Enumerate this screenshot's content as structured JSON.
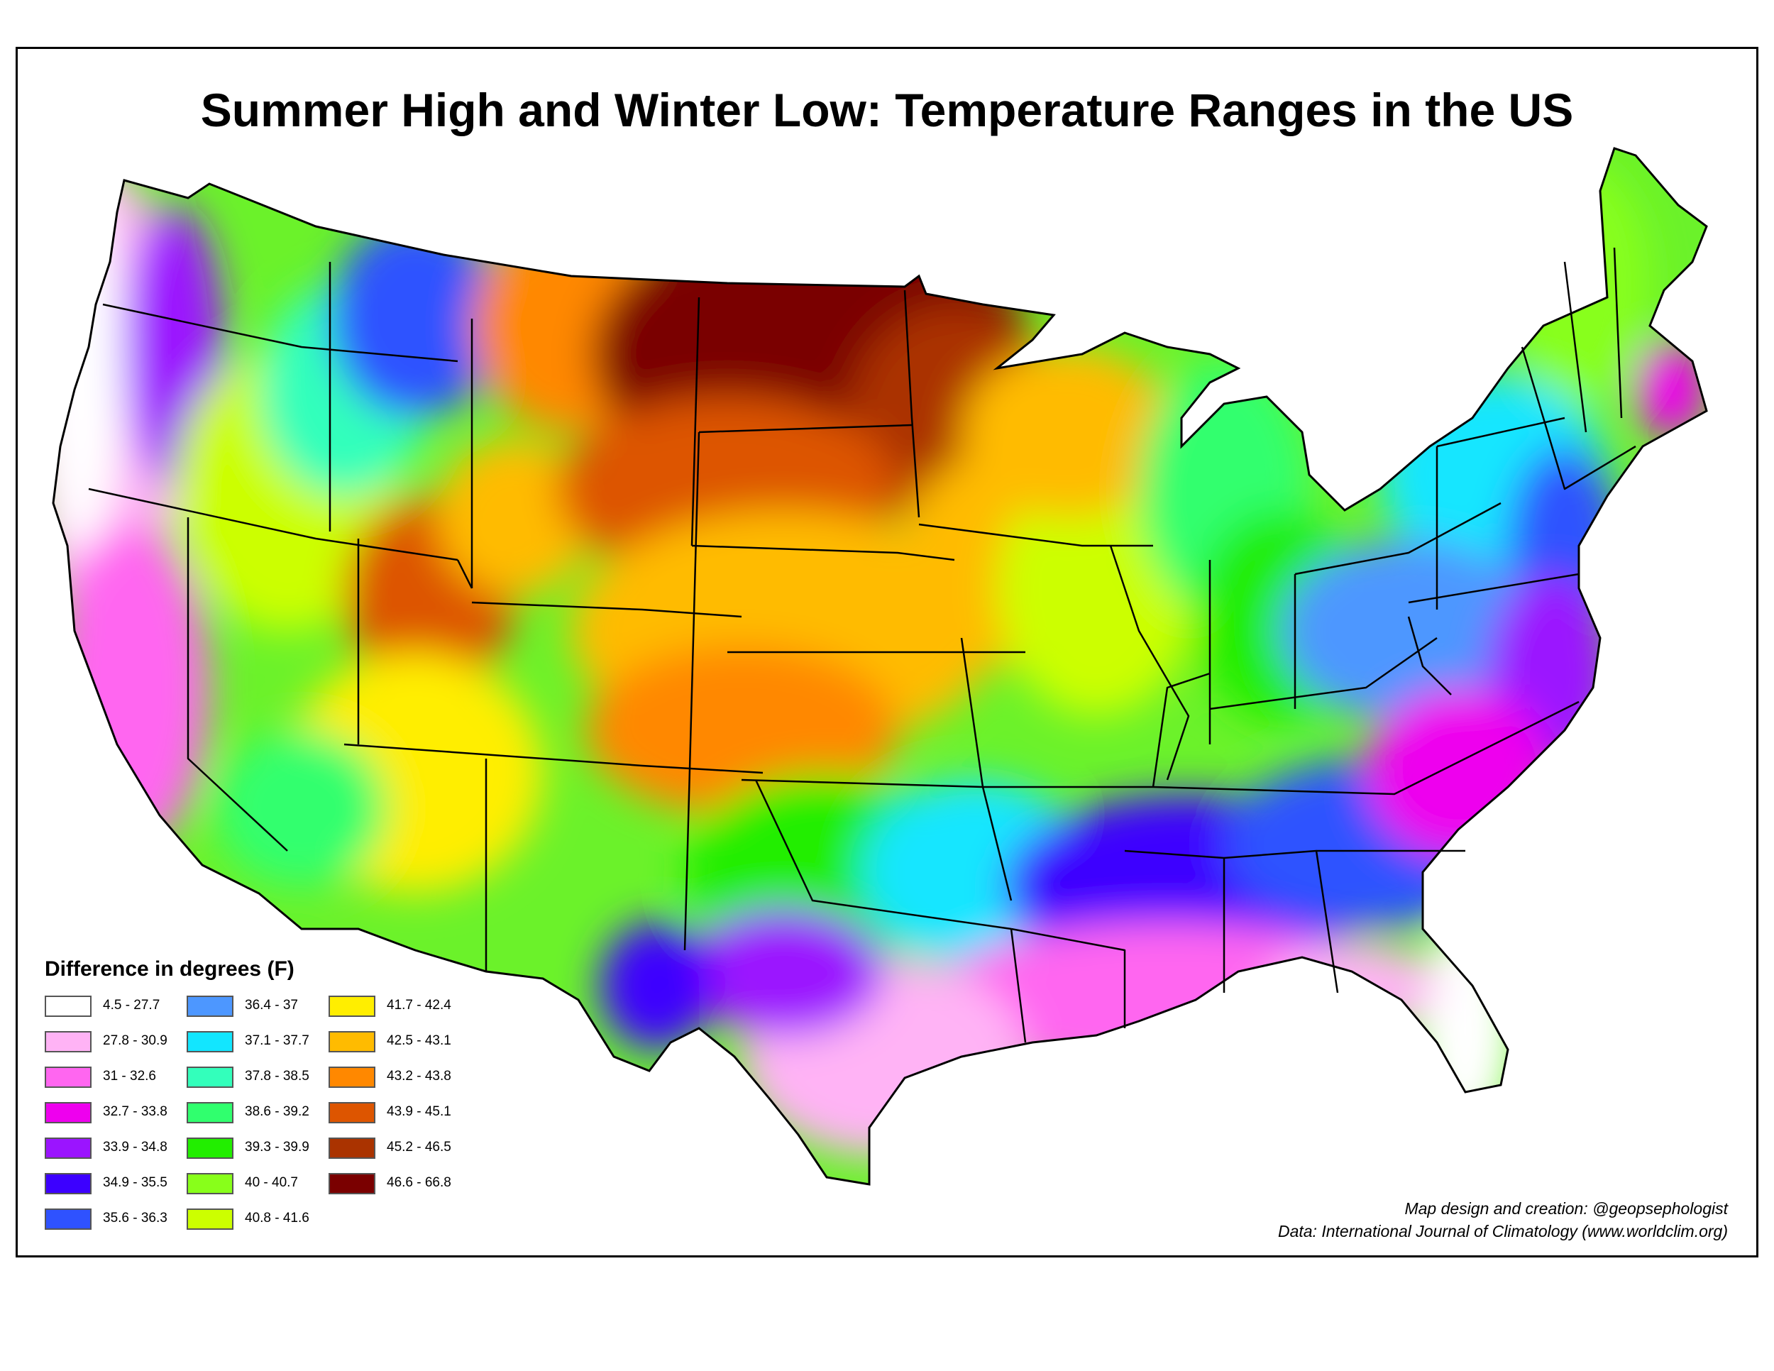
{
  "title": "Summer High and Winter Low: Temperature Ranges in the US",
  "legend": {
    "title": "Difference in degrees (F)",
    "items": [
      {
        "label": "4.5 - 27.7",
        "color": "#ffffff"
      },
      {
        "label": "27.8 - 30.9",
        "color": "#ffb3f5"
      },
      {
        "label": "31 - 32.6",
        "color": "#ff66f0"
      },
      {
        "label": "32.7 - 33.8",
        "color": "#ee00ee"
      },
      {
        "label": "33.9 - 34.8",
        "color": "#9b14ff"
      },
      {
        "label": "34.9 - 35.5",
        "color": "#3c00ff"
      },
      {
        "label": "35.6 - 36.3",
        "color": "#2f52ff"
      },
      {
        "label": "36.4 - 37",
        "color": "#4d97ff"
      },
      {
        "label": "37.1 - 37.7",
        "color": "#12e6ff"
      },
      {
        "label": "37.8 - 38.5",
        "color": "#33ffbb"
      },
      {
        "label": "38.6 - 39.2",
        "color": "#30ff6e"
      },
      {
        "label": "39.3 - 39.9",
        "color": "#22ee00"
      },
      {
        "label": "40 - 40.7",
        "color": "#88ff1a"
      },
      {
        "label": "40.8 - 41.6",
        "color": "#ccff00"
      },
      {
        "label": "41.7 - 42.4",
        "color": "#ffee00"
      },
      {
        "label": "42.5 - 43.1",
        "color": "#ffbb00"
      },
      {
        "label": "43.2 - 43.8",
        "color": "#ff8800"
      },
      {
        "label": "43.9 - 45.1",
        "color": "#dd5500"
      },
      {
        "label": "45.2 - 46.5",
        "color": "#aa3300"
      },
      {
        "label": "46.6 - 66.8",
        "color": "#7a0000"
      }
    ]
  },
  "credits": {
    "line1": "Map design and creation: @geopsephologist",
    "line2": "Data: International Journal of Climatology (www.worldclim.org)"
  }
}
